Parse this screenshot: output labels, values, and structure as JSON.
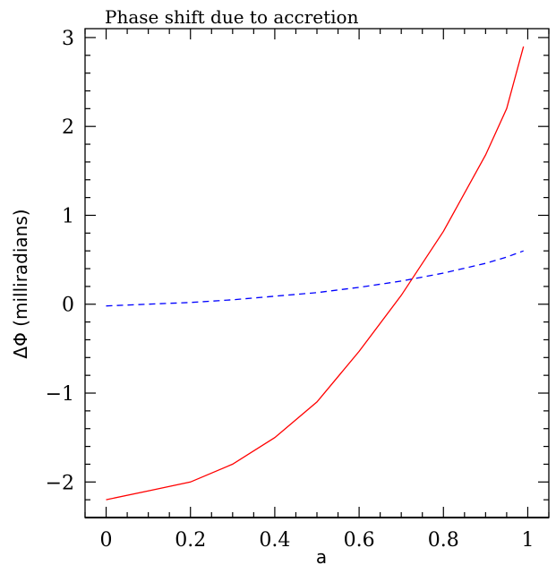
{
  "chart_data": {
    "type": "line",
    "title": "Phase shift due to accretion",
    "xlabel": "a",
    "ylabel": "ΔΦ (milliradians)",
    "xlim": [
      -0.05,
      1.05
    ],
    "ylim": [
      -2.4,
      3.1
    ],
    "xticks": [
      0,
      0.2,
      0.4,
      0.6,
      0.8,
      1
    ],
    "xtick_labels": [
      "0",
      "0.2",
      "0.4",
      "0.6",
      "0.8",
      "1"
    ],
    "yticks": [
      -2,
      -1,
      0,
      1,
      2,
      3
    ],
    "ytick_labels": [
      "−2",
      "−1",
      "0",
      "1",
      "2",
      "3"
    ],
    "grid": false,
    "legend": "none",
    "series": [
      {
        "color": "#ff0000",
        "style": "solid",
        "x": [
          0,
          0.1,
          0.2,
          0.3,
          0.4,
          0.5,
          0.6,
          0.7,
          0.8,
          0.9,
          0.95,
          0.99
        ],
        "y": [
          -2.2,
          -2.1,
          -2.0,
          -1.8,
          -1.5,
          -1.1,
          -0.53,
          0.1,
          0.82,
          1.68,
          2.2,
          2.9
        ]
      },
      {
        "color": "#0000ff",
        "style": "dashed",
        "x": [
          0,
          0.1,
          0.2,
          0.3,
          0.4,
          0.5,
          0.6,
          0.7,
          0.8,
          0.9,
          0.95,
          0.99
        ],
        "y": [
          -0.02,
          0.0,
          0.02,
          0.05,
          0.09,
          0.13,
          0.19,
          0.26,
          0.35,
          0.46,
          0.53,
          0.6
        ]
      }
    ]
  }
}
